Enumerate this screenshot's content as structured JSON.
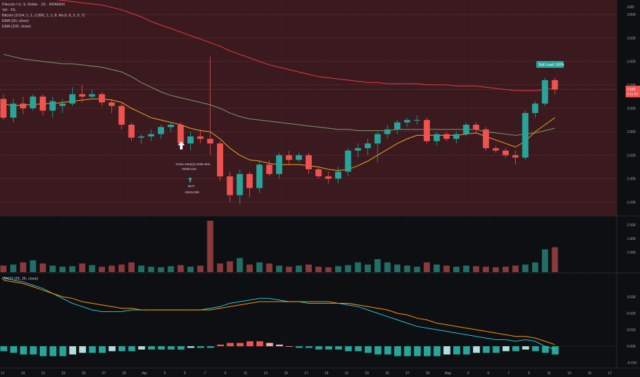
{
  "header": {
    "symbol_line": "Filecoin / U. S. Dollar · 1D · KRAKEN",
    "vol_line": "Vol · FIL",
    "indicator_line": "Bitcoin (1/1/4, 1, 1, 2,099, 1, 1, 8, No,0, 6, 2, 5, 7)",
    "ema50_line": "EMA (50, close)",
    "ema100_line": "EMA (100, close)",
    "macd_line": "MACD (25, 26, close)",
    "currency": "USD"
  },
  "colors": {
    "up": "#26a69a",
    "down": "#ef5350",
    "price_bg": "#3b1a1f",
    "ema50": "#f5a623",
    "ema100": "#7d9a6a",
    "ema_red": "#e53946",
    "macd": "#26c6da",
    "signal": "#ff9800"
  },
  "annotations": {
    "bull_label": "Bull Load: 100%",
    "close_entry": "Close entry(s) order BUL",
    "close_entry_value": "+6025.444",
    "buy_label": "BUY",
    "buy_value": "+3615.328",
    "price_tag": "3.160",
    "price_tag_sub": "5:11:42"
  },
  "chart_data": [
    {
      "type": "candlestick",
      "x_labels": [
        "17",
        "19",
        "21",
        "23",
        "25",
        "27",
        "29",
        "Apr",
        "3",
        "5",
        "7",
        "9",
        "11",
        "13",
        "15",
        "17",
        "19",
        "21",
        "23",
        "25",
        "27",
        "29",
        "May",
        "3",
        "5",
        "7",
        "9",
        "11",
        "13",
        "15",
        "17"
      ],
      "ylim": [
        2.1,
        3.9
      ],
      "y_ticks": [
        2.2,
        2.4,
        2.6,
        2.8,
        3.0,
        3.2,
        3.4,
        3.6,
        3.8
      ],
      "y_tick_labels": [
        "2.200",
        "2.400",
        "2.600",
        "2.800",
        "3.000",
        "3.200",
        "3.400",
        "3.600",
        "3.800"
      ],
      "ohlc": [
        [
          3.08,
          3.12,
          2.9,
          2.92
        ],
        [
          2.92,
          3.08,
          2.88,
          3.04
        ],
        [
          3.04,
          3.1,
          2.95,
          3.0
        ],
        [
          3.0,
          3.12,
          2.98,
          3.1
        ],
        [
          3.1,
          3.12,
          2.94,
          2.98
        ],
        [
          2.98,
          3.1,
          2.92,
          3.06
        ],
        [
          3.02,
          3.08,
          2.96,
          3.04
        ],
        [
          3.04,
          3.18,
          3.02,
          3.12
        ],
        [
          3.12,
          3.2,
          3.05,
          3.1
        ],
        [
          3.1,
          3.16,
          3.08,
          3.12
        ],
        [
          3.12,
          3.14,
          3.02,
          3.05
        ],
        [
          3.05,
          3.08,
          2.96,
          3.02
        ],
        [
          3.02,
          3.04,
          2.82,
          2.86
        ],
        [
          2.86,
          2.88,
          2.72,
          2.75
        ],
        [
          2.75,
          2.78,
          2.7,
          2.76
        ],
        [
          2.76,
          2.82,
          2.72,
          2.78
        ],
        [
          2.78,
          2.86,
          2.74,
          2.84
        ],
        [
          2.84,
          2.88,
          2.8,
          2.86
        ],
        [
          2.86,
          2.88,
          2.66,
          2.7
        ],
        [
          2.7,
          2.8,
          2.64,
          2.76
        ],
        [
          2.76,
          2.82,
          2.7,
          2.74
        ],
        [
          2.74,
          3.44,
          2.6,
          2.7
        ],
        [
          2.7,
          2.72,
          2.38,
          2.42
        ],
        [
          2.42,
          2.46,
          2.2,
          2.26
        ],
        [
          2.26,
          2.48,
          2.18,
          2.44
        ],
        [
          2.44,
          2.46,
          2.24,
          2.32
        ],
        [
          2.32,
          2.56,
          2.28,
          2.52
        ],
        [
          2.52,
          2.56,
          2.42,
          2.44
        ],
        [
          2.44,
          2.62,
          2.4,
          2.6
        ],
        [
          2.6,
          2.64,
          2.52,
          2.56
        ],
        [
          2.56,
          2.62,
          2.54,
          2.6
        ],
        [
          2.6,
          2.62,
          2.44,
          2.48
        ],
        [
          2.48,
          2.5,
          2.4,
          2.42
        ],
        [
          2.42,
          2.46,
          2.36,
          2.4
        ],
        [
          2.4,
          2.5,
          2.36,
          2.46
        ],
        [
          2.46,
          2.66,
          2.42,
          2.64
        ],
        [
          2.64,
          2.7,
          2.58,
          2.66
        ],
        [
          2.66,
          2.74,
          2.6,
          2.7
        ],
        [
          2.7,
          2.8,
          2.54,
          2.78
        ],
        [
          2.78,
          2.86,
          2.74,
          2.82
        ],
        [
          2.82,
          2.9,
          2.78,
          2.88
        ],
        [
          2.88,
          2.92,
          2.84,
          2.9
        ],
        [
          2.9,
          2.94,
          2.86,
          2.9
        ],
        [
          2.9,
          2.92,
          2.7,
          2.72
        ],
        [
          2.72,
          2.8,
          2.68,
          2.78
        ],
        [
          2.78,
          2.8,
          2.72,
          2.74
        ],
        [
          2.74,
          2.8,
          2.7,
          2.78
        ],
        [
          2.78,
          2.88,
          2.76,
          2.86
        ],
        [
          2.86,
          2.88,
          2.78,
          2.82
        ],
        [
          2.82,
          2.84,
          2.64,
          2.66
        ],
        [
          2.66,
          2.68,
          2.62,
          2.64
        ],
        [
          2.64,
          2.66,
          2.58,
          2.6
        ],
        [
          2.6,
          2.64,
          2.52,
          2.58
        ],
        [
          2.58,
          2.98,
          2.56,
          2.96
        ],
        [
          2.96,
          3.06,
          2.92,
          3.04
        ],
        [
          3.04,
          3.26,
          3.02,
          3.24
        ],
        [
          3.24,
          3.26,
          3.12,
          3.16
        ]
      ],
      "ema_fast": [
        3.04,
        3.02,
        3.03,
        3.03,
        3.04,
        3.04,
        3.05,
        3.06,
        3.07,
        3.08,
        3.08,
        3.07,
        3.05,
        3.0,
        2.96,
        2.92,
        2.9,
        2.88,
        2.86,
        2.83,
        2.81,
        2.8,
        2.74,
        2.66,
        2.6,
        2.56,
        2.55,
        2.53,
        2.52,
        2.52,
        2.52,
        2.51,
        2.5,
        2.48,
        2.47,
        2.48,
        2.51,
        2.55,
        2.6,
        2.65,
        2.7,
        2.74,
        2.77,
        2.77,
        2.77,
        2.77,
        2.77,
        2.78,
        2.79,
        2.76,
        2.73,
        2.7,
        2.67,
        2.72,
        2.8,
        2.86,
        2.92
      ],
      "ema_slow": [
        3.46,
        3.44,
        3.42,
        3.41,
        3.4,
        3.39,
        3.38,
        3.38,
        3.37,
        3.36,
        3.35,
        3.33,
        3.31,
        3.27,
        3.22,
        3.18,
        3.14,
        3.11,
        3.09,
        3.07,
        3.05,
        3.03,
        3.0,
        2.96,
        2.93,
        2.91,
        2.9,
        2.89,
        2.88,
        2.87,
        2.86,
        2.85,
        2.84,
        2.83,
        2.82,
        2.82,
        2.81,
        2.81,
        2.81,
        2.81,
        2.82,
        2.82,
        2.82,
        2.82,
        2.82,
        2.82,
        2.82,
        2.82,
        2.82,
        2.8,
        2.79,
        2.78,
        2.77,
        2.78,
        2.79,
        2.81,
        2.83
      ],
      "ema_red": [
        3.98,
        3.97,
        3.96,
        3.95,
        3.94,
        3.93,
        3.92,
        3.91,
        3.9,
        3.89,
        3.88,
        3.86,
        3.84,
        3.81,
        3.78,
        3.74,
        3.71,
        3.68,
        3.65,
        3.62,
        3.59,
        3.56,
        3.53,
        3.49,
        3.46,
        3.43,
        3.4,
        3.37,
        3.35,
        3.33,
        3.31,
        3.29,
        3.27,
        3.26,
        3.25,
        3.24,
        3.23,
        3.22,
        3.22,
        3.21,
        3.21,
        3.21,
        3.21,
        3.2,
        3.2,
        3.2,
        3.19,
        3.19,
        3.19,
        3.18,
        3.17,
        3.16,
        3.15,
        3.15,
        3.15,
        3.16,
        3.17
      ]
    },
    {
      "type": "bar",
      "name": "volume",
      "y_tick_labels": [
        "2.000",
        "1.800",
        "1.600"
      ],
      "values": [
        12,
        14,
        18,
        22,
        16,
        12,
        10,
        11,
        16,
        13,
        10,
        12,
        14,
        18,
        12,
        10,
        9,
        11,
        13,
        10,
        12,
        95,
        16,
        20,
        26,
        14,
        18,
        16,
        12,
        10,
        12,
        14,
        10,
        9,
        11,
        13,
        18,
        14,
        24,
        18,
        14,
        12,
        10,
        18,
        14,
        12,
        10,
        12,
        11,
        10,
        9,
        10,
        12,
        14,
        18,
        42,
        46
      ]
    },
    {
      "type": "line",
      "name": "MACD",
      "y_ticks": [
        0.03,
        0.02,
        0.01,
        0.0,
        -0.01
      ],
      "y_tick_labels": [
        "0.030",
        "0.020",
        "0.010",
        "0.000",
        "-0.010"
      ],
      "macd": [
        0.042,
        0.04,
        0.039,
        0.037,
        0.035,
        0.032,
        0.029,
        0.026,
        0.024,
        0.022,
        0.021,
        0.021,
        0.021,
        0.022,
        0.022,
        0.022,
        0.022,
        0.022,
        0.022,
        0.022,
        0.022,
        0.023,
        0.024,
        0.026,
        0.027,
        0.028,
        0.029,
        0.029,
        0.028,
        0.027,
        0.027,
        0.026,
        0.026,
        0.026,
        0.026,
        0.025,
        0.024,
        0.022,
        0.02,
        0.018,
        0.016,
        0.014,
        0.012,
        0.011,
        0.01,
        0.009,
        0.008,
        0.007,
        0.006,
        0.005,
        0.004,
        0.004,
        0.003,
        0.004,
        0.003,
        0.0,
        -0.002
      ],
      "signal": [
        0.04,
        0.039,
        0.038,
        0.036,
        0.034,
        0.032,
        0.03,
        0.029,
        0.027,
        0.026,
        0.025,
        0.024,
        0.023,
        0.023,
        0.022,
        0.022,
        0.022,
        0.022,
        0.022,
        0.022,
        0.022,
        0.022,
        0.023,
        0.024,
        0.025,
        0.026,
        0.027,
        0.027,
        0.027,
        0.027,
        0.027,
        0.027,
        0.027,
        0.027,
        0.026,
        0.026,
        0.025,
        0.024,
        0.023,
        0.022,
        0.02,
        0.019,
        0.017,
        0.016,
        0.014,
        0.013,
        0.012,
        0.011,
        0.01,
        0.009,
        0.008,
        0.007,
        0.006,
        0.006,
        0.005,
        0.003,
        0.001
      ],
      "histogram": [
        -0.003,
        -0.004,
        -0.005,
        -0.005,
        -0.006,
        -0.006,
        -0.006,
        -0.005,
        -0.004,
        -0.004,
        -0.004,
        -0.003,
        -0.003,
        -0.003,
        -0.002,
        -0.002,
        -0.002,
        -0.002,
        -0.002,
        -0.001,
        -0.001,
        -0.001,
        0.001,
        0.002,
        0.002,
        0.003,
        0.003,
        0.002,
        0.001,
        0.0,
        -0.001,
        -0.001,
        -0.002,
        -0.002,
        -0.002,
        -0.003,
        -0.003,
        -0.004,
        -0.005,
        -0.005,
        -0.006,
        -0.006,
        -0.006,
        -0.006,
        -0.006,
        -0.005,
        -0.005,
        -0.005,
        -0.004,
        -0.004,
        -0.004,
        -0.003,
        -0.003,
        -0.002,
        -0.003,
        -0.004,
        -0.005
      ]
    }
  ]
}
